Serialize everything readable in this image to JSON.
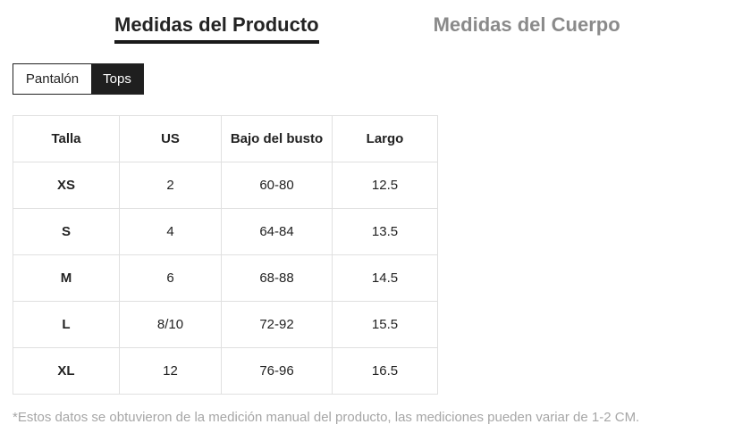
{
  "header": {
    "tabs": [
      {
        "label": "Medidas del Producto",
        "active": true
      },
      {
        "label": "Medidas del Cuerpo",
        "active": false
      }
    ]
  },
  "toggle": {
    "options": [
      {
        "label": "Pantalón",
        "selected": false
      },
      {
        "label": "Tops",
        "selected": true
      }
    ]
  },
  "size_table": {
    "columns": [
      "Talla",
      "US",
      "Bajo del busto",
      "Largo"
    ],
    "rows": [
      [
        "XS",
        "2",
        "60-80",
        "12.5"
      ],
      [
        "S",
        "4",
        "64-84",
        "13.5"
      ],
      [
        "M",
        "6",
        "68-88",
        "14.5"
      ],
      [
        "L",
        "8/10",
        "72-92",
        "15.5"
      ],
      [
        "XL",
        "12",
        "76-96",
        "16.5"
      ]
    ]
  },
  "footnote": "*Estos datos se obtuvieron de la medición manual del producto, las mediciones pueden variar de 1-2 CM.",
  "colors": {
    "active_tab_text": "#232323",
    "active_tab_underline": "#1a1a1a",
    "inactive_tab_text": "#8a8a8a",
    "toggle_selected_bg": "#1f1f1f",
    "toggle_selected_text": "#ffffff",
    "toggle_border": "#222222",
    "table_border": "#e0e0e0",
    "table_text": "#222222",
    "footnote_text": "#a6a6a6",
    "background": "#ffffff"
  }
}
